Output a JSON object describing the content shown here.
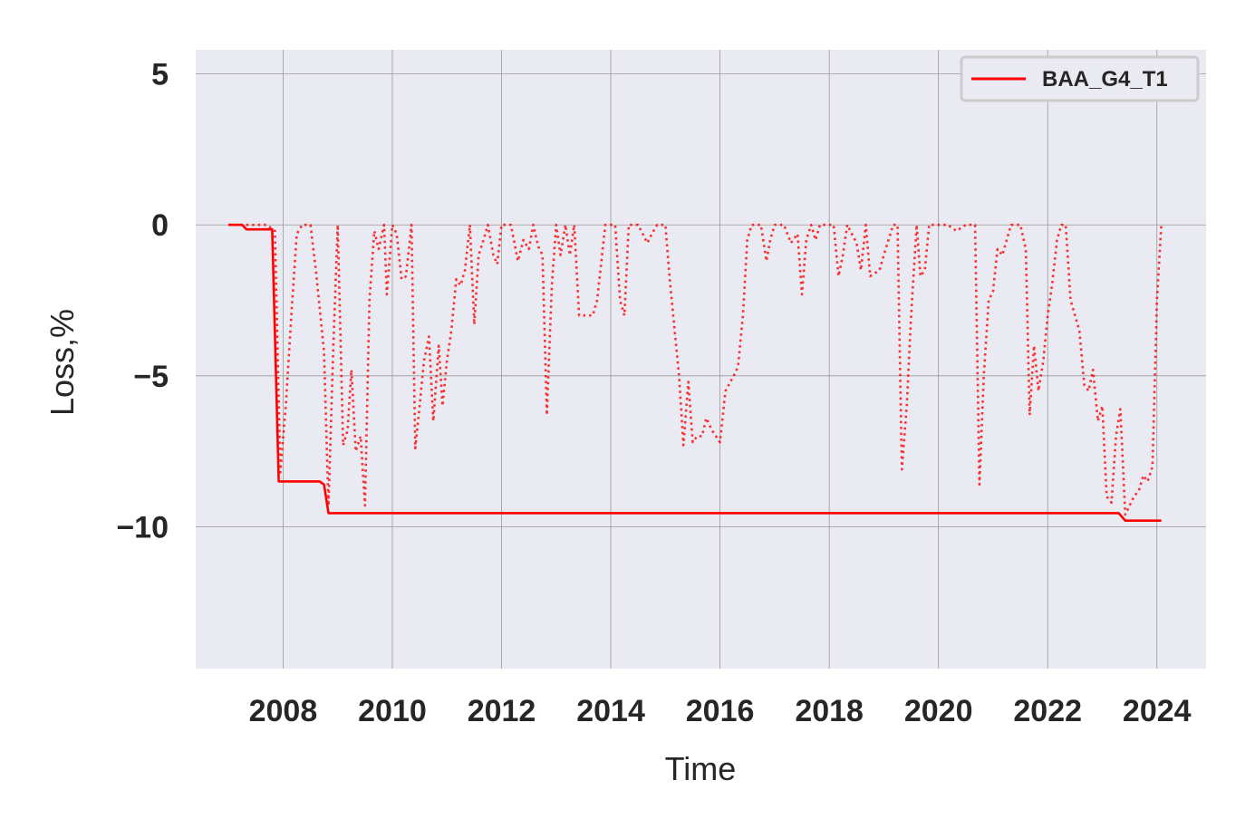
{
  "chart_data": {
    "type": "line",
    "xlabel": "Time",
    "ylabel": "Loss,%",
    "xlim": [
      2006.4,
      2024.9
    ],
    "ylim": [
      -14.7,
      5.8
    ],
    "xticks": [
      2008,
      2010,
      2012,
      2014,
      2016,
      2018,
      2020,
      2022,
      2024
    ],
    "xtick_labels": [
      "2008",
      "2010",
      "2012",
      "2014",
      "2016",
      "2018",
      "2020",
      "2022",
      "2024"
    ],
    "yticks": [
      5,
      0,
      -5,
      -10
    ],
    "ytick_labels": [
      "5",
      "0",
      "−5",
      "−10"
    ],
    "grid": true,
    "legend_position": "top-right",
    "colors": {
      "background": "#eaeaf2",
      "grid": "#999999",
      "series": "#ff0000"
    },
    "series": [
      {
        "name": "BAA_G4_T1",
        "style": "solid",
        "in_legend": true,
        "points": [
          [
            2007.0,
            0.0
          ],
          [
            2007.25,
            0.0
          ],
          [
            2007.33,
            -0.15
          ],
          [
            2007.8,
            -0.15
          ],
          [
            2007.92,
            -8.5
          ],
          [
            2008.67,
            -8.5
          ],
          [
            2008.75,
            -8.6
          ],
          [
            2008.83,
            -9.55
          ],
          [
            2023.3,
            -9.55
          ],
          [
            2023.42,
            -9.8
          ],
          [
            2024.08,
            -9.8
          ]
        ]
      },
      {
        "name": "",
        "style": "dotted",
        "in_legend": false,
        "points": [
          [
            2007.0,
            0.0
          ],
          [
            2007.3,
            0.0
          ],
          [
            2007.5,
            0.0
          ],
          [
            2007.7,
            0.0
          ],
          [
            2007.85,
            -0.2
          ],
          [
            2007.95,
            -8.2
          ],
          [
            2008.05,
            -6.0
          ],
          [
            2008.15,
            -3.0
          ],
          [
            2008.25,
            -0.3
          ],
          [
            2008.35,
            0.0
          ],
          [
            2008.5,
            0.0
          ],
          [
            2008.6,
            -1.5
          ],
          [
            2008.75,
            -4.2
          ],
          [
            2008.83,
            -9.3
          ],
          [
            2008.92,
            -4.0
          ],
          [
            2009.0,
            0.0
          ],
          [
            2009.1,
            -7.3
          ],
          [
            2009.18,
            -6.8
          ],
          [
            2009.25,
            -4.8
          ],
          [
            2009.33,
            -7.5
          ],
          [
            2009.42,
            -7.0
          ],
          [
            2009.5,
            -9.3
          ],
          [
            2009.58,
            -2.5
          ],
          [
            2009.67,
            -0.2
          ],
          [
            2009.75,
            -0.8
          ],
          [
            2009.85,
            0.0
          ],
          [
            2009.9,
            -2.3
          ],
          [
            2010.0,
            0.0
          ],
          [
            2010.08,
            -0.3
          ],
          [
            2010.17,
            -1.8
          ],
          [
            2010.25,
            -1.7
          ],
          [
            2010.35,
            0.0
          ],
          [
            2010.42,
            -7.4
          ],
          [
            2010.5,
            -6.0
          ],
          [
            2010.58,
            -4.5
          ],
          [
            2010.67,
            -3.7
          ],
          [
            2010.75,
            -6.5
          ],
          [
            2010.85,
            -4.0
          ],
          [
            2010.92,
            -6.0
          ],
          [
            2011.0,
            -4.5
          ],
          [
            2011.08,
            -3.5
          ],
          [
            2011.17,
            -1.8
          ],
          [
            2011.25,
            -2.0
          ],
          [
            2011.33,
            -1.5
          ],
          [
            2011.42,
            0.0
          ],
          [
            2011.5,
            -3.3
          ],
          [
            2011.58,
            -1.0
          ],
          [
            2011.67,
            -0.5
          ],
          [
            2011.75,
            0.0
          ],
          [
            2011.85,
            -1.0
          ],
          [
            2011.92,
            -1.3
          ],
          [
            2012.0,
            0.0
          ],
          [
            2012.17,
            0.0
          ],
          [
            2012.3,
            -1.2
          ],
          [
            2012.4,
            -0.5
          ],
          [
            2012.5,
            -0.8
          ],
          [
            2012.58,
            0.0
          ],
          [
            2012.67,
            -0.7
          ],
          [
            2012.75,
            -1.0
          ],
          [
            2012.83,
            -6.3
          ],
          [
            2012.92,
            -2.0
          ],
          [
            2013.0,
            0.0
          ],
          [
            2013.08,
            -1.0
          ],
          [
            2013.17,
            0.0
          ],
          [
            2013.25,
            -1.0
          ],
          [
            2013.33,
            0.0
          ],
          [
            2013.42,
            -3.0
          ],
          [
            2013.67,
            -3.0
          ],
          [
            2013.75,
            -2.5
          ],
          [
            2013.9,
            0.0
          ],
          [
            2014.08,
            0.0
          ],
          [
            2014.17,
            -2.5
          ],
          [
            2014.25,
            -3.0
          ],
          [
            2014.33,
            0.0
          ],
          [
            2014.5,
            0.0
          ],
          [
            2014.67,
            -0.6
          ],
          [
            2014.75,
            -0.3
          ],
          [
            2014.85,
            0.0
          ],
          [
            2015.0,
            0.0
          ],
          [
            2015.08,
            -1.8
          ],
          [
            2015.25,
            -5.0
          ],
          [
            2015.33,
            -7.3
          ],
          [
            2015.42,
            -5.2
          ],
          [
            2015.5,
            -7.2
          ],
          [
            2015.58,
            -7.0
          ],
          [
            2015.67,
            -7.0
          ],
          [
            2015.75,
            -6.4
          ],
          [
            2015.85,
            -6.8
          ],
          [
            2016.0,
            -7.2
          ],
          [
            2016.1,
            -5.5
          ],
          [
            2016.25,
            -5.0
          ],
          [
            2016.33,
            -4.7
          ],
          [
            2016.42,
            -3.0
          ],
          [
            2016.5,
            -0.5
          ],
          [
            2016.58,
            0.0
          ],
          [
            2016.75,
            0.0
          ],
          [
            2016.85,
            -1.2
          ],
          [
            2016.92,
            -0.5
          ],
          [
            2017.0,
            0.0
          ],
          [
            2017.17,
            0.0
          ],
          [
            2017.3,
            -0.6
          ],
          [
            2017.42,
            -0.3
          ],
          [
            2017.5,
            -2.3
          ],
          [
            2017.58,
            -0.5
          ],
          [
            2017.67,
            0.0
          ],
          [
            2017.75,
            -0.5
          ],
          [
            2017.83,
            0.0
          ],
          [
            2018.08,
            0.0
          ],
          [
            2018.17,
            -1.7
          ],
          [
            2018.25,
            -1.0
          ],
          [
            2018.33,
            0.0
          ],
          [
            2018.5,
            -0.6
          ],
          [
            2018.58,
            -1.5
          ],
          [
            2018.67,
            0.0
          ],
          [
            2018.75,
            -1.7
          ],
          [
            2018.92,
            -1.5
          ],
          [
            2019.0,
            -1.0
          ],
          [
            2019.17,
            0.0
          ],
          [
            2019.25,
            0.0
          ],
          [
            2019.33,
            -8.1
          ],
          [
            2019.42,
            -6.0
          ],
          [
            2019.5,
            -3.0
          ],
          [
            2019.6,
            0.0
          ],
          [
            2019.67,
            -1.7
          ],
          [
            2019.75,
            -1.5
          ],
          [
            2019.83,
            0.0
          ],
          [
            2020.0,
            0.0
          ],
          [
            2020.17,
            0.0
          ],
          [
            2020.33,
            -0.2
          ],
          [
            2020.5,
            0.0
          ],
          [
            2020.67,
            0.0
          ],
          [
            2020.75,
            -8.6
          ],
          [
            2020.83,
            -5.0
          ],
          [
            2020.92,
            -2.5
          ],
          [
            2021.0,
            -2.2
          ],
          [
            2021.08,
            -0.8
          ],
          [
            2021.17,
            -1.0
          ],
          [
            2021.25,
            -0.5
          ],
          [
            2021.33,
            0.0
          ],
          [
            2021.5,
            0.0
          ],
          [
            2021.6,
            -0.8
          ],
          [
            2021.67,
            -6.3
          ],
          [
            2021.75,
            -4.0
          ],
          [
            2021.83,
            -5.5
          ],
          [
            2021.92,
            -4.5
          ],
          [
            2022.0,
            -3.0
          ],
          [
            2022.08,
            -2.0
          ],
          [
            2022.17,
            -0.5
          ],
          [
            2022.25,
            0.0
          ],
          [
            2022.33,
            0.0
          ],
          [
            2022.42,
            -2.5
          ],
          [
            2022.58,
            -3.5
          ],
          [
            2022.67,
            -5.3
          ],
          [
            2022.75,
            -5.5
          ],
          [
            2022.83,
            -4.8
          ],
          [
            2022.92,
            -6.5
          ],
          [
            2023.0,
            -6.0
          ],
          [
            2023.08,
            -9.0
          ],
          [
            2023.17,
            -9.2
          ],
          [
            2023.25,
            -7.0
          ],
          [
            2023.33,
            -6.1
          ],
          [
            2023.42,
            -9.6
          ],
          [
            2023.5,
            -9.3
          ],
          [
            2023.58,
            -9.0
          ],
          [
            2023.67,
            -8.8
          ],
          [
            2023.75,
            -8.3
          ],
          [
            2023.83,
            -8.5
          ],
          [
            2023.92,
            -8.0
          ],
          [
            2024.0,
            -2.5
          ],
          [
            2024.08,
            0.0
          ]
        ]
      }
    ]
  }
}
